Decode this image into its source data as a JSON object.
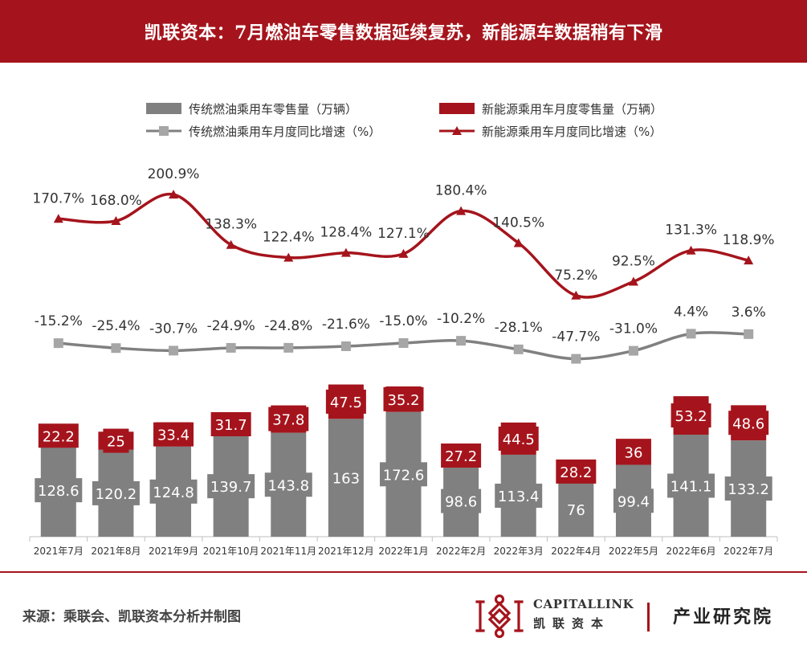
{
  "header": {
    "title": "凯联资本：7月燃油车零售数据延续复苏，新能源车数据稍有下滑"
  },
  "colors": {
    "brand_red": "#a5141c",
    "gray": "#808080",
    "light_gray": "#a6a6a6"
  },
  "chart_data": {
    "type": "bar+line",
    "categories": [
      "2021年7月",
      "2021年8月",
      "2021年9月",
      "2021年10月",
      "2021年11月",
      "2021年12月",
      "2022年1月",
      "2022年2月",
      "2022年3月",
      "2022年4月",
      "2022年5月",
      "2022年6月",
      "2022年7月"
    ],
    "series": [
      {
        "name": "传统燃油乘用车零售量（万辆）",
        "kind": "bar",
        "color": "#808080",
        "values": [
          128.6,
          120.2,
          124.8,
          139.7,
          143.8,
          163,
          172.6,
          98.6,
          113.4,
          76,
          99.4,
          141.1,
          133.2
        ],
        "labels": [
          "128.6",
          "120.2",
          "124.8",
          "139.7",
          "143.8",
          "163",
          "172.6",
          "98.6",
          "113.4",
          "76",
          "99.4",
          "141.1",
          "133.2"
        ]
      },
      {
        "name": "新能源乘用车月度零售量（万辆）",
        "kind": "bar-stacked",
        "color": "#a5141c",
        "values": [
          22.2,
          25,
          33.4,
          31.7,
          37.8,
          47.5,
          35.2,
          27.2,
          44.5,
          28.2,
          36,
          53.2,
          48.6
        ],
        "labels": [
          "22.2",
          "25",
          "33.4",
          "31.7",
          "37.8",
          "47.5",
          "35.2",
          "27.2",
          "44.5",
          "28.2",
          "36",
          "53.2",
          "48.6"
        ]
      },
      {
        "name": "传统燃油乘用车月度同比增速（%）",
        "kind": "line",
        "marker": "square",
        "color": "#808080",
        "values": [
          -15.2,
          -25.4,
          -30.7,
          -24.9,
          -24.8,
          -21.6,
          -15.0,
          -10.2,
          -28.1,
          -47.7,
          -31.0,
          4.4,
          3.6
        ],
        "labels": [
          "-15.2%",
          "-25.4%",
          "-30.7%",
          "-24.9%",
          "-24.8%",
          "-21.6%",
          "-15.0%",
          "-10.2%",
          "-28.1%",
          "-47.7%",
          "-31.0%",
          "4.4%",
          "3.6%"
        ]
      },
      {
        "name": "新能源乘用车月度同比增速（%）",
        "kind": "line",
        "marker": "triangle",
        "color": "#a5141c",
        "values": [
          170.7,
          168.0,
          200.9,
          138.3,
          122.4,
          128.4,
          127.1,
          180.4,
          140.5,
          75.2,
          92.5,
          131.3,
          118.9
        ],
        "labels": [
          "170.7%",
          "168.0%",
          "200.9%",
          "138.3%",
          "122.4%",
          "128.4%",
          "127.1%",
          "180.4%",
          "140.5%",
          "75.2%",
          "92.5%",
          "131.3%",
          "118.9%"
        ]
      }
    ],
    "legend": {
      "position": "top"
    },
    "grid": false
  },
  "footer": {
    "source": "来源：乘联会、凯联资本分析并制图",
    "brand_en": "CAPITALLINK",
    "brand_cn": "凯联资本",
    "institute": "产业研究院"
  }
}
